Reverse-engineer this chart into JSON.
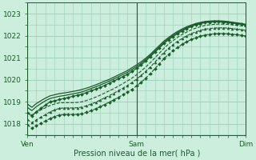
{
  "title": "Pression niveau de la mer( hPa )",
  "bg_color": "#cceedd",
  "grid_color": "#99ccbb",
  "line_color": "#1a5c2a",
  "xlim": [
    0,
    48
  ],
  "ylim": [
    1017.5,
    1023.5
  ],
  "yticks": [
    1018,
    1019,
    1020,
    1021,
    1022,
    1023
  ],
  "xtick_labels": [
    "Ven",
    "Sam",
    "Dim"
  ],
  "xtick_positions": [
    0,
    24,
    48
  ],
  "vlines": [
    0,
    24,
    48
  ],
  "series": [
    {
      "y": [
        1018.5,
        1018.35,
        1018.55,
        1018.7,
        1018.85,
        1019.0,
        1019.05,
        1019.1,
        1019.15,
        1019.2,
        1019.25,
        1019.3,
        1019.35,
        1019.42,
        1019.5,
        1019.58,
        1019.65,
        1019.75,
        1019.85,
        1019.95,
        1020.05,
        1020.15,
        1020.25,
        1020.38,
        1020.52,
        1020.68,
        1020.85,
        1021.05,
        1021.25,
        1021.45,
        1021.65,
        1021.82,
        1021.97,
        1022.1,
        1022.22,
        1022.33,
        1022.42,
        1022.5,
        1022.55,
        1022.6,
        1022.62,
        1022.63,
        1022.63,
        1022.62,
        1022.6,
        1022.58,
        1022.55,
        1022.52,
        1022.48
      ],
      "ls": "-",
      "marker": "D",
      "ms": 2.0,
      "lw": 0.9,
      "zorder": 5
    },
    {
      "y": [
        1018.75,
        1018.6,
        1018.78,
        1018.92,
        1019.05,
        1019.15,
        1019.2,
        1019.25,
        1019.28,
        1019.32,
        1019.36,
        1019.4,
        1019.45,
        1019.52,
        1019.6,
        1019.68,
        1019.76,
        1019.85,
        1019.94,
        1020.04,
        1020.14,
        1020.24,
        1020.34,
        1020.47,
        1020.6,
        1020.75,
        1020.92,
        1021.1,
        1021.3,
        1021.5,
        1021.7,
        1021.87,
        1022.02,
        1022.15,
        1022.27,
        1022.37,
        1022.46,
        1022.53,
        1022.58,
        1022.62,
        1022.64,
        1022.65,
        1022.65,
        1022.64,
        1022.62,
        1022.6,
        1022.57,
        1022.54,
        1022.5
      ],
      "ls": "-",
      "marker": null,
      "ms": 0,
      "lw": 0.9,
      "zorder": 4
    },
    {
      "y": [
        1018.9,
        1018.75,
        1018.92,
        1019.05,
        1019.17,
        1019.27,
        1019.32,
        1019.37,
        1019.4,
        1019.43,
        1019.47,
        1019.51,
        1019.56,
        1019.62,
        1019.69,
        1019.77,
        1019.85,
        1019.94,
        1020.02,
        1020.12,
        1020.22,
        1020.32,
        1020.42,
        1020.55,
        1020.68,
        1020.82,
        1020.98,
        1021.16,
        1021.36,
        1021.56,
        1021.76,
        1021.92,
        1022.07,
        1022.2,
        1022.31,
        1022.41,
        1022.49,
        1022.56,
        1022.61,
        1022.65,
        1022.67,
        1022.68,
        1022.68,
        1022.67,
        1022.65,
        1022.62,
        1022.59,
        1022.56,
        1022.52
      ],
      "ls": "-",
      "marker": null,
      "ms": 0,
      "lw": 0.9,
      "zorder": 4
    },
    {
      "y": [
        1018.2,
        1018.05,
        1018.18,
        1018.3,
        1018.42,
        1018.54,
        1018.63,
        1018.7,
        1018.72,
        1018.72,
        1018.72,
        1018.73,
        1018.76,
        1018.82,
        1018.9,
        1018.98,
        1019.08,
        1019.18,
        1019.28,
        1019.39,
        1019.5,
        1019.62,
        1019.74,
        1019.88,
        1020.03,
        1020.2,
        1020.38,
        1020.58,
        1020.8,
        1021.02,
        1021.24,
        1021.43,
        1021.6,
        1021.75,
        1021.88,
        1022.0,
        1022.1,
        1022.18,
        1022.24,
        1022.3,
        1022.33,
        1022.35,
        1022.36,
        1022.36,
        1022.35,
        1022.33,
        1022.3,
        1022.28,
        1022.25
      ],
      "ls": "--",
      "marker": "^",
      "ms": 2.2,
      "lw": 0.8,
      "zorder": 3
    },
    {
      "y": [
        1018.55,
        1018.4,
        1018.52,
        1018.63,
        1018.73,
        1018.83,
        1018.9,
        1018.95,
        1018.96,
        1018.96,
        1018.96,
        1018.97,
        1019.0,
        1019.06,
        1019.13,
        1019.21,
        1019.3,
        1019.4,
        1019.5,
        1019.6,
        1019.71,
        1019.83,
        1019.95,
        1020.08,
        1020.23,
        1020.4,
        1020.58,
        1020.78,
        1020.99,
        1021.21,
        1021.43,
        1021.62,
        1021.78,
        1021.93,
        1022.06,
        1022.17,
        1022.27,
        1022.35,
        1022.41,
        1022.47,
        1022.5,
        1022.52,
        1022.53,
        1022.53,
        1022.52,
        1022.5,
        1022.47,
        1022.45,
        1022.42
      ],
      "ls": "--",
      "marker": null,
      "ms": 0,
      "lw": 0.8,
      "zorder": 3
    },
    {
      "y": [
        1017.95,
        1017.8,
        1017.92,
        1018.03,
        1018.13,
        1018.24,
        1018.33,
        1018.4,
        1018.42,
        1018.42,
        1018.42,
        1018.43,
        1018.46,
        1018.52,
        1018.6,
        1018.68,
        1018.78,
        1018.88,
        1018.98,
        1019.09,
        1019.2,
        1019.32,
        1019.44,
        1019.57,
        1019.72,
        1019.89,
        1020.07,
        1020.28,
        1020.5,
        1020.73,
        1020.96,
        1021.15,
        1021.32,
        1021.47,
        1021.61,
        1021.73,
        1021.83,
        1021.91,
        1021.98,
        1022.04,
        1022.07,
        1022.09,
        1022.1,
        1022.1,
        1022.09,
        1022.07,
        1022.05,
        1022.02,
        1021.99
      ],
      "ls": "--",
      "marker": "D",
      "ms": 2.0,
      "lw": 0.8,
      "zorder": 3
    }
  ]
}
